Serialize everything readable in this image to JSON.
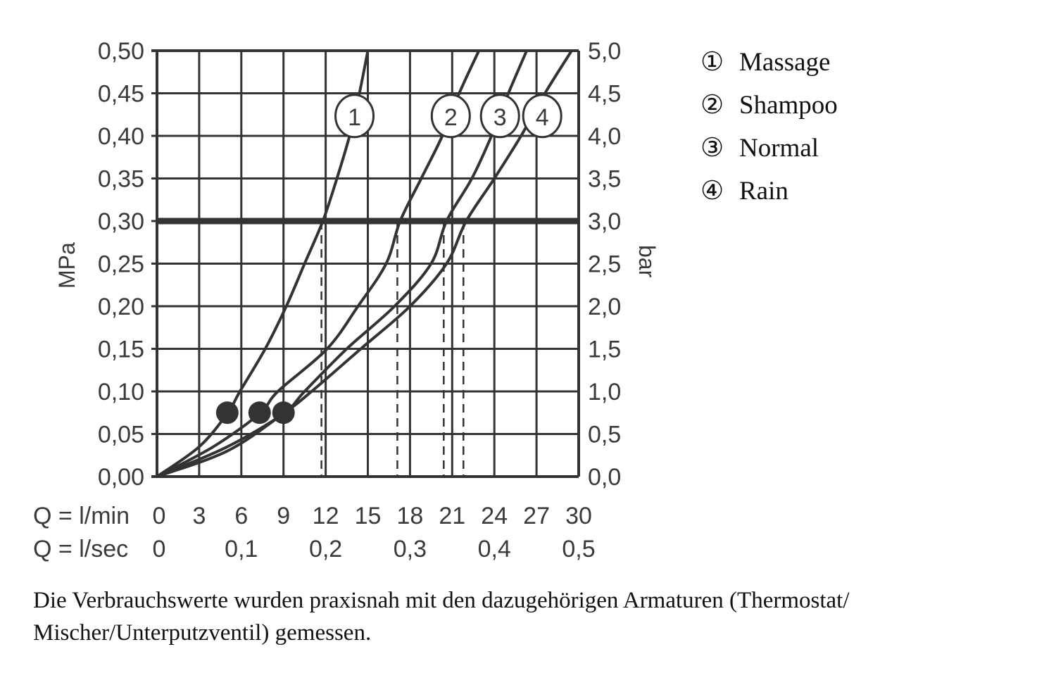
{
  "chart_data": {
    "type": "line",
    "xlabel_rows": [
      {
        "label": "Q = l/min",
        "ticks": [
          "0",
          "3",
          "6",
          "9",
          "12",
          "15",
          "18",
          "21",
          "24",
          "27",
          "30"
        ],
        "values": [
          0,
          3,
          6,
          9,
          12,
          15,
          18,
          21,
          24,
          27,
          30
        ]
      },
      {
        "label": "Q = l/sec",
        "ticks": [
          "0",
          "0,1",
          "0,2",
          "0,3",
          "0,4",
          "0,5"
        ],
        "values": [
          0,
          6,
          12,
          18,
          24,
          30
        ]
      }
    ],
    "xlim": [
      0,
      30
    ],
    "ylabel_left": "MPa",
    "ylabel_right": "bar",
    "ylim": [
      0,
      0.5
    ],
    "yticks_left": [
      "0,00",
      "0,05",
      "0,10",
      "0,15",
      "0,20",
      "0,25",
      "0,30",
      "0,35",
      "0,40",
      "0,45",
      "0,50"
    ],
    "yticks_right": [
      "0,0",
      "0,5",
      "1,0",
      "1,5",
      "2,0",
      "2,5",
      "3,0",
      "3,5",
      "4,0",
      "4,5",
      "5,0"
    ],
    "grid": true,
    "reference_line_mpa": 0.3,
    "series": [
      {
        "name": "Massage",
        "marker": "1",
        "points": [
          [
            0,
            0
          ],
          [
            3,
            0.035
          ],
          [
            5,
            0.074
          ],
          [
            5.9,
            0.1
          ],
          [
            7.7,
            0.15
          ],
          [
            9.2,
            0.2
          ],
          [
            10.5,
            0.25
          ],
          [
            11.8,
            0.3
          ],
          [
            12.8,
            0.35
          ],
          [
            13.7,
            0.4
          ],
          [
            14.4,
            0.45
          ],
          [
            15.0,
            0.5
          ]
        ],
        "flow_at_reference": 11.7,
        "dot": [
          5.0,
          0.075
        ]
      },
      {
        "name": "Shampoo",
        "marker": "2",
        "points": [
          [
            0,
            0
          ],
          [
            4,
            0.035
          ],
          [
            7.3,
            0.074
          ],
          [
            8.6,
            0.1
          ],
          [
            12.1,
            0.15
          ],
          [
            14.3,
            0.2
          ],
          [
            16.3,
            0.25
          ],
          [
            17.3,
            0.3
          ],
          [
            18.8,
            0.35
          ],
          [
            20.3,
            0.4
          ],
          [
            21.5,
            0.45
          ],
          [
            22.9,
            0.5
          ]
        ],
        "flow_at_reference": 17.1,
        "dot": [
          7.3,
          0.075
        ]
      },
      {
        "name": "Normal",
        "marker": "3",
        "points": [
          [
            0,
            0
          ],
          [
            5,
            0.035
          ],
          [
            9.0,
            0.074
          ],
          [
            10.5,
            0.1
          ],
          [
            13.5,
            0.15
          ],
          [
            16.9,
            0.2
          ],
          [
            19.5,
            0.25
          ],
          [
            20.6,
            0.3
          ],
          [
            22.4,
            0.35
          ],
          [
            23.8,
            0.4
          ],
          [
            25.0,
            0.45
          ],
          [
            26.3,
            0.5
          ]
        ],
        "flow_at_reference": 20.4,
        "dot": [
          9.0,
          0.075
        ]
      },
      {
        "name": "Rain",
        "marker": "4",
        "points": [
          [
            0,
            0
          ],
          [
            5,
            0.03
          ],
          [
            9.0,
            0.074
          ],
          [
            11.0,
            0.1
          ],
          [
            14.5,
            0.15
          ],
          [
            18.0,
            0.2
          ],
          [
            20.6,
            0.25
          ],
          [
            22.0,
            0.3
          ],
          [
            24.0,
            0.35
          ],
          [
            25.9,
            0.4
          ],
          [
            27.6,
            0.45
          ],
          [
            29.5,
            0.5
          ]
        ],
        "flow_at_reference": 21.8,
        "dot": null
      }
    ],
    "legend_placement": "right",
    "colors": {
      "ink": "#333333"
    }
  },
  "legend": [
    {
      "symbol": "①",
      "label": "Massage"
    },
    {
      "symbol": "②",
      "label": "Shampoo"
    },
    {
      "symbol": "③",
      "label": "Normal"
    },
    {
      "symbol": "④",
      "label": "Rain"
    }
  ],
  "footnote": "Die Verbrauchswerte wurden praxisnah mit den dazugehörigen Armaturen (Thermostat/ Mischer/Unterputzventil) gemessen."
}
